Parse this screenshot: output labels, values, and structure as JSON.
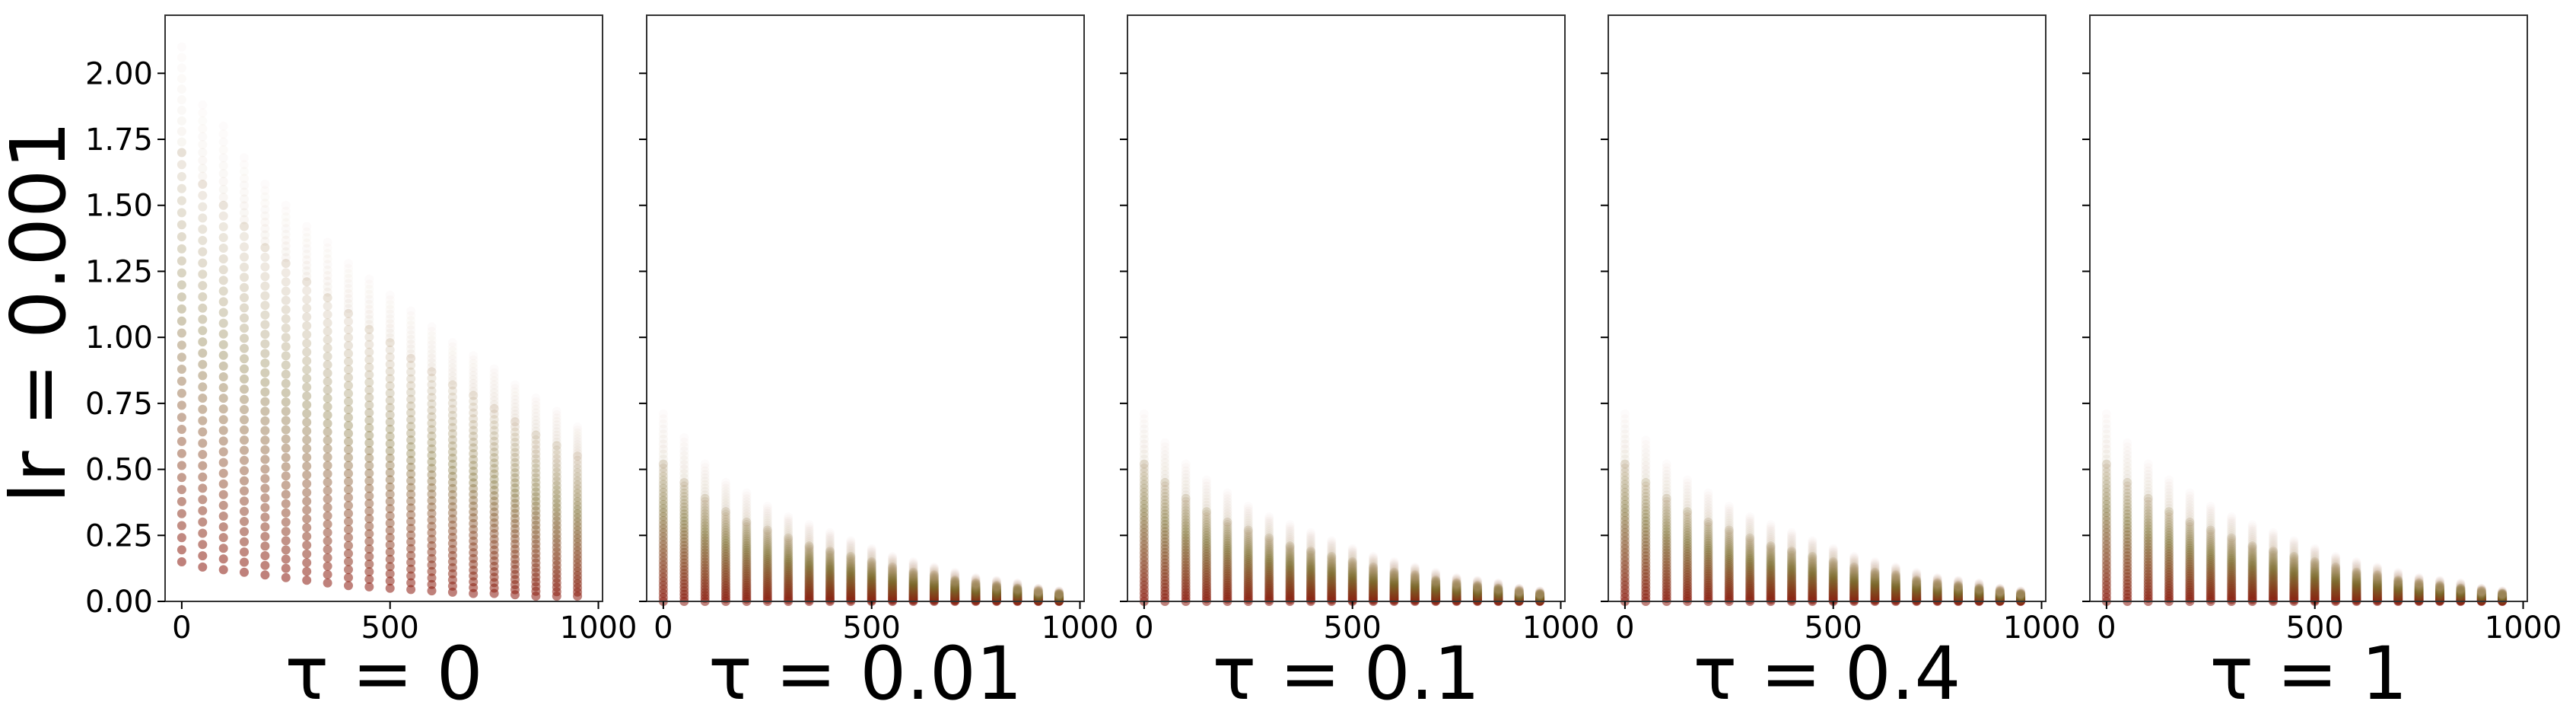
{
  "chart_data": {
    "type": "scatter",
    "ylabel": "lr = 0.001",
    "ylim": [
      0,
      2.22
    ],
    "xlim": [
      -40,
      1010
    ],
    "yticks": [
      "0.00",
      "0.25",
      "0.50",
      "0.75",
      "1.00",
      "1.25",
      "1.50",
      "1.75",
      "2.00"
    ],
    "xticks": [
      "0",
      "500",
      "1000"
    ],
    "shared_y": true,
    "colors": {
      "low": "#8b1a0e",
      "mid": "#7a6a2a",
      "high": "#d8b8a8"
    },
    "x_steps": [
      0,
      50,
      100,
      150,
      200,
      250,
      300,
      350,
      400,
      450,
      500,
      550,
      600,
      650,
      700,
      750,
      800,
      850,
      900,
      950
    ],
    "panels": [
      {
        "xlabel": "τ = 0",
        "series": {
          "max": [
            2.1,
            1.88,
            1.8,
            1.68,
            1.58,
            1.5,
            1.42,
            1.36,
            1.28,
            1.22,
            1.16,
            1.1,
            1.04,
            0.98,
            0.93,
            0.88,
            0.82,
            0.77,
            0.72,
            0.66
          ],
          "dense_max": [
            1.7,
            1.58,
            1.5,
            1.42,
            1.34,
            1.28,
            1.21,
            1.15,
            1.09,
            1.03,
            0.98,
            0.92,
            0.87,
            0.82,
            0.78,
            0.73,
            0.68,
            0.63,
            0.59,
            0.55
          ],
          "min": [
            0.15,
            0.13,
            0.12,
            0.11,
            0.1,
            0.09,
            0.08,
            0.07,
            0.06,
            0.055,
            0.05,
            0.045,
            0.04,
            0.035,
            0.03,
            0.03,
            0.025,
            0.02,
            0.02,
            0.02
          ]
        }
      },
      {
        "xlabel": "τ = 0.01",
        "series": {
          "max": [
            0.71,
            0.62,
            0.52,
            0.45,
            0.41,
            0.36,
            0.32,
            0.29,
            0.26,
            0.23,
            0.2,
            0.17,
            0.15,
            0.13,
            0.11,
            0.09,
            0.08,
            0.07,
            0.05,
            0.04
          ],
          "dense_max": [
            0.52,
            0.45,
            0.39,
            0.34,
            0.3,
            0.27,
            0.24,
            0.21,
            0.19,
            0.17,
            0.15,
            0.13,
            0.11,
            0.1,
            0.08,
            0.07,
            0.06,
            0.05,
            0.04,
            0.03
          ],
          "min": [
            0.0,
            0.0,
            0.0,
            0.0,
            0.0,
            0.0,
            0.0,
            0.0,
            0.0,
            0.0,
            0.0,
            0.0,
            0.0,
            0.0,
            0.0,
            0.0,
            0.0,
            0.0,
            0.0,
            0.0
          ]
        }
      },
      {
        "xlabel": "τ = 0.1",
        "series": {
          "max": [
            0.71,
            0.6,
            0.52,
            0.46,
            0.41,
            0.36,
            0.32,
            0.29,
            0.26,
            0.23,
            0.2,
            0.17,
            0.15,
            0.13,
            0.11,
            0.09,
            0.08,
            0.07,
            0.05,
            0.04
          ],
          "dense_max": [
            0.52,
            0.45,
            0.39,
            0.34,
            0.3,
            0.27,
            0.24,
            0.21,
            0.19,
            0.17,
            0.15,
            0.13,
            0.11,
            0.1,
            0.08,
            0.07,
            0.06,
            0.05,
            0.04,
            0.03
          ],
          "min": [
            0.0,
            0.0,
            0.0,
            0.0,
            0.0,
            0.0,
            0.0,
            0.0,
            0.0,
            0.0,
            0.0,
            0.0,
            0.0,
            0.0,
            0.0,
            0.0,
            0.0,
            0.0,
            0.0,
            0.0
          ]
        }
      },
      {
        "xlabel": "τ = 0.4",
        "series": {
          "max": [
            0.71,
            0.61,
            0.52,
            0.46,
            0.41,
            0.36,
            0.32,
            0.29,
            0.26,
            0.23,
            0.2,
            0.17,
            0.15,
            0.13,
            0.11,
            0.09,
            0.08,
            0.07,
            0.05,
            0.04
          ],
          "dense_max": [
            0.52,
            0.45,
            0.39,
            0.34,
            0.3,
            0.27,
            0.24,
            0.21,
            0.19,
            0.17,
            0.15,
            0.13,
            0.11,
            0.1,
            0.08,
            0.07,
            0.06,
            0.05,
            0.04,
            0.03
          ],
          "min": [
            0.0,
            0.0,
            0.0,
            0.0,
            0.0,
            0.0,
            0.0,
            0.0,
            0.0,
            0.0,
            0.0,
            0.0,
            0.0,
            0.0,
            0.0,
            0.0,
            0.0,
            0.0,
            0.0,
            0.0
          ]
        }
      },
      {
        "xlabel": "τ = 1",
        "series": {
          "max": [
            0.71,
            0.6,
            0.52,
            0.46,
            0.41,
            0.36,
            0.32,
            0.29,
            0.26,
            0.23,
            0.2,
            0.17,
            0.15,
            0.13,
            0.11,
            0.09,
            0.08,
            0.07,
            0.05,
            0.04
          ],
          "dense_max": [
            0.52,
            0.45,
            0.39,
            0.34,
            0.3,
            0.27,
            0.24,
            0.21,
            0.19,
            0.17,
            0.15,
            0.13,
            0.11,
            0.1,
            0.08,
            0.07,
            0.06,
            0.05,
            0.04,
            0.03
          ],
          "min": [
            0.0,
            0.0,
            0.0,
            0.0,
            0.0,
            0.0,
            0.0,
            0.0,
            0.0,
            0.0,
            0.0,
            0.0,
            0.0,
            0.0,
            0.0,
            0.0,
            0.0,
            0.0,
            0.0,
            0.0
          ]
        }
      }
    ]
  }
}
